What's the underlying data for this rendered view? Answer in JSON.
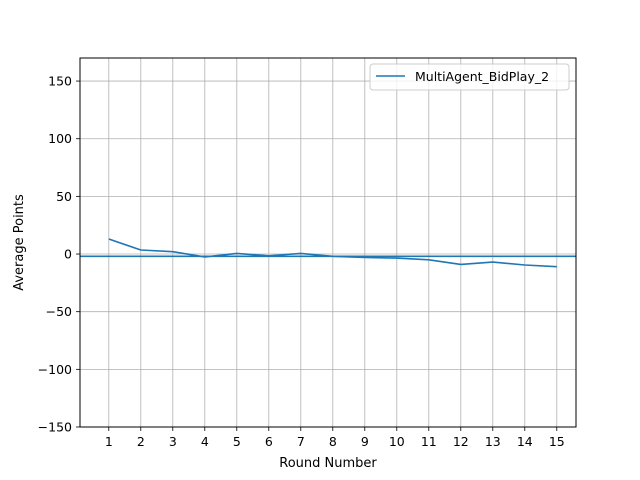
{
  "chart_data": {
    "type": "line",
    "title": "",
    "xlabel": "Round Number",
    "ylabel": "Average Points",
    "x": [
      1,
      2,
      3,
      4,
      5,
      6,
      7,
      8,
      9,
      10,
      11,
      12,
      13,
      14,
      15
    ],
    "xlim": [
      0.1,
      15.6
    ],
    "ylim": [
      -150,
      170
    ],
    "yticks": [
      -150,
      -100,
      -50,
      0,
      50,
      100,
      150
    ],
    "ytick_labels": [
      "−150",
      "−100",
      "−50",
      "0",
      "50",
      "100",
      "150"
    ],
    "grid": true,
    "legend_position": "top-right",
    "series": [
      {
        "name": "MultiAgent_BidPlay_2",
        "color": "#1f77b4",
        "values": [
          13,
          3.5,
          2,
          -2.5,
          0.5,
          -1.5,
          0.5,
          -2,
          -3,
          -3.5,
          -5,
          -9,
          -7,
          -9.5,
          -11
        ]
      }
    ],
    "hlines": [
      {
        "y": -2,
        "color": "#1f77b4"
      }
    ]
  }
}
